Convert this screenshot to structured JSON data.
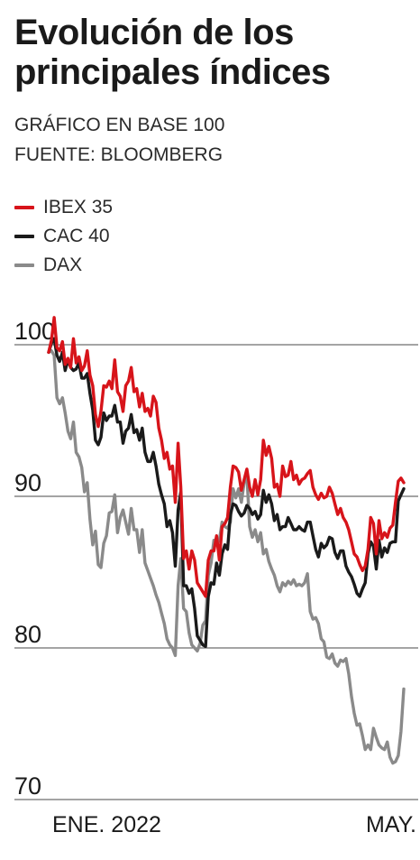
{
  "header": {
    "title": "Evolución de los principales índices",
    "subtitle": "GRÁFICO EN BASE 100",
    "source": "FUENTE: BLOOMBERG"
  },
  "chart_data": {
    "type": "line",
    "ylim": [
      70,
      100
    ],
    "yticks": [
      100,
      90,
      80,
      70
    ],
    "xtick_labels": [
      {
        "label": "ENE. 2022",
        "t": 0.0
      },
      {
        "label": "MAY.",
        "t": 1.0
      }
    ],
    "grid": true,
    "legend_placement": "top-left",
    "series": [
      {
        "name": "IBEX 35",
        "color": "#d7141a",
        "values": [
          99.5,
          100.3,
          101.8,
          99.8,
          99.6,
          100.2,
          98.7,
          99.1,
          98.5,
          100.4,
          98.8,
          99.2,
          98.3,
          98.6,
          99.6,
          98.0,
          97.3,
          95.4,
          94.6,
          95.6,
          97.3,
          97.2,
          97.6,
          97.1,
          99.0,
          96.9,
          96.6,
          95.6,
          97.3,
          97.6,
          98.5,
          96.9,
          97.1,
          95.9,
          96.8,
          95.6,
          95.8,
          95.3,
          96.6,
          96.2,
          94.5,
          93.7,
          92.5,
          92.9,
          91.8,
          92.0,
          89.6,
          93.5,
          90.6,
          85.9,
          86.4,
          85.2,
          86.4,
          85.8,
          84.3,
          84.0,
          83.7,
          83.4,
          85.8,
          86.4,
          86.4,
          87.4,
          85.8,
          88.0,
          88.2,
          88.6,
          90.6,
          92.0,
          91.9,
          91.6,
          90.4,
          91.1,
          91.8,
          90.6,
          90.0,
          91.1,
          90.1,
          91.1,
          93.7,
          92.7,
          93.3,
          92.5,
          90.6,
          90.8,
          90.0,
          92.0,
          91.3,
          91.4,
          92.3,
          91.1,
          91.4,
          90.8,
          91.1,
          91.2,
          91.5,
          91.7,
          90.6,
          90.1,
          89.8,
          90.2,
          89.9,
          90.0,
          90.6,
          90.2,
          89.5,
          88.8,
          89.2,
          88.6,
          88.3,
          87.8,
          87.0,
          86.2,
          86.0,
          85.5,
          85.1,
          85.4,
          86.5,
          88.6,
          88.2,
          86.2,
          88.4,
          87.2,
          87.6,
          87.3,
          87.9,
          88.1,
          89.6,
          91.0,
          91.2,
          90.9
        ]
      },
      {
        "name": "CAC 40",
        "color": "#1a1a1a",
        "values": [
          99.5,
          100.1,
          100.4,
          99.3,
          98.9,
          99.5,
          98.3,
          99.0,
          98.5,
          98.3,
          98.4,
          98.8,
          97.8,
          97.8,
          98.1,
          96.8,
          95.7,
          93.7,
          93.4,
          93.9,
          95.5,
          95.0,
          95.3,
          95.3,
          96.0,
          94.9,
          94.9,
          93.5,
          94.3,
          94.5,
          95.4,
          94.2,
          94.4,
          93.7,
          94.5,
          92.9,
          92.3,
          92.3,
          92.9,
          92.0,
          90.8,
          90.1,
          89.5,
          88.0,
          88.4,
          87.6,
          85.4,
          89.1,
          90.3,
          84.1,
          84.1,
          83.6,
          83.9,
          82.6,
          80.8,
          80.5,
          80.2,
          80.1,
          83.4,
          84.3,
          84.2,
          85.6,
          84.8,
          86.2,
          86.8,
          86.5,
          88.8,
          89.5,
          89.4,
          89.0,
          88.7,
          88.9,
          89.4,
          89.2,
          88.8,
          89.0,
          88.5,
          88.8,
          90.4,
          89.6,
          90.1,
          89.5,
          88.4,
          88.8,
          87.8,
          88.0,
          88.0,
          88.6,
          88.2,
          87.8,
          87.8,
          88.0,
          87.8,
          87.7,
          88.3,
          88.3,
          87.4,
          86.5,
          86.0,
          86.9,
          86.6,
          86.8,
          87.3,
          87.2,
          86.3,
          85.9,
          86.4,
          86.4,
          85.4,
          85.0,
          84.7,
          84.2,
          83.6,
          83.4,
          83.9,
          84.3,
          86.2,
          87.0,
          86.7,
          85.2,
          87.1,
          86.0,
          86.6,
          86.3,
          86.9,
          87.0,
          87.0,
          89.7,
          90.1,
          90.5
        ]
      },
      {
        "name": "DAX",
        "color": "#8a8a8a",
        "values": [
          99.5,
          99.6,
          99.3,
          96.5,
          96.1,
          96.5,
          95.5,
          94.3,
          93.8,
          94.9,
          92.9,
          92.6,
          91.9,
          90.3,
          90.9,
          88.5,
          86.8,
          87.7,
          85.5,
          85.3,
          86.9,
          87.4,
          88.9,
          89.0,
          90.1,
          87.6,
          88.6,
          89.1,
          88.3,
          87.5,
          89.2,
          87.8,
          87.8,
          86.3,
          87.8,
          85.6,
          85.1,
          84.6,
          84.1,
          83.5,
          83.0,
          82.3,
          81.6,
          80.6,
          80.2,
          80.0,
          79.5,
          84.1,
          85.9,
          82.6,
          82.4,
          81.0,
          80.2,
          80.0,
          79.8,
          80.3,
          81.5,
          81.8,
          84.8,
          85.6,
          87.1,
          86.9,
          87.1,
          88.3,
          88.0,
          87.9,
          88.3,
          90.5,
          89.9,
          90.5,
          89.6,
          90.9,
          91.4,
          88.0,
          87.3,
          87.8,
          87.0,
          87.6,
          86.2,
          86.5,
          85.7,
          85.2,
          84.8,
          84.1,
          83.7,
          84.3,
          84.1,
          84.4,
          84.2,
          84.5,
          84.1,
          84.2,
          84.1,
          84.3,
          84.9,
          82.4,
          81.9,
          82.0,
          81.6,
          80.6,
          80.4,
          79.4,
          79.3,
          79.6,
          79.0,
          78.8,
          79.2,
          79.1,
          79.3,
          78.3,
          76.8,
          75.7,
          74.9,
          75.0,
          74.2,
          73.3,
          73.6,
          73.3,
          74.7,
          74.1,
          73.6,
          73.4,
          73.3,
          73.8,
          72.8,
          72.4,
          72.5,
          72.9,
          74.5,
          77.3
        ]
      }
    ]
  }
}
